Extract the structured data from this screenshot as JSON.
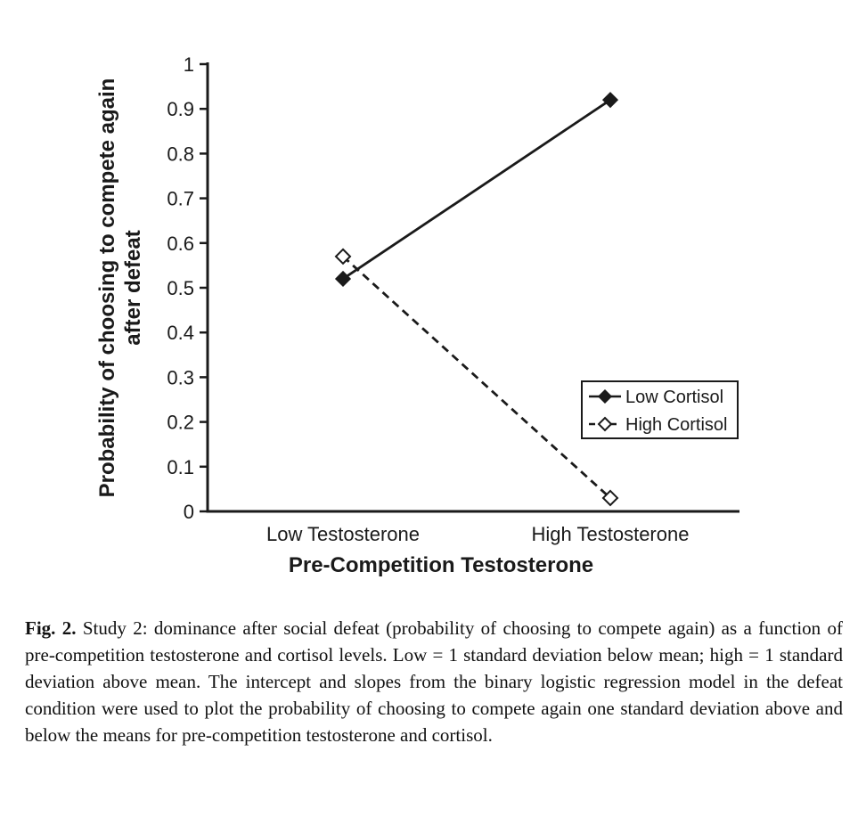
{
  "chart_data": {
    "type": "line",
    "title": "",
    "xlabel": "Pre-Competition Testosterone",
    "ylabel": "Probability of choosing to compete again after defeat",
    "ylabel_lines": [
      "Probability of choosing to compete again",
      "after defeat"
    ],
    "categories": [
      "Low Testosterone",
      "High Testosterone"
    ],
    "series": [
      {
        "name": "Low Cortisol",
        "values": [
          0.52,
          0.92
        ],
        "line": "solid",
        "marker": "filled-diamond"
      },
      {
        "name": "High Cortisol",
        "values": [
          0.57,
          0.03
        ],
        "line": "dashed",
        "marker": "open-diamond"
      }
    ],
    "ylim": [
      0,
      1
    ],
    "yticks": [
      0,
      0.1,
      0.2,
      0.3,
      0.4,
      0.5,
      0.6,
      0.7,
      0.8,
      0.9,
      1
    ],
    "grid": false,
    "legend_position": "inside-lower-right",
    "colors": {
      "line": "#1a1a1a",
      "background": "#ffffff"
    }
  },
  "legend": {
    "items": [
      "Low Cortisol",
      "High Cortisol"
    ]
  },
  "caption": {
    "label": "Fig. 2.",
    "text": " Study 2: dominance after social defeat (probability of choosing to compete again) as a function of pre-competition testosterone and cortisol levels. Low = 1 standard deviation below mean; high = 1 standard deviation above mean. The intercept and slopes from the binary logistic regression model in the defeat condition were used to plot the probability of choosing to compete again one standard deviation above and below the means for pre-competition testosterone and cortisol."
  }
}
